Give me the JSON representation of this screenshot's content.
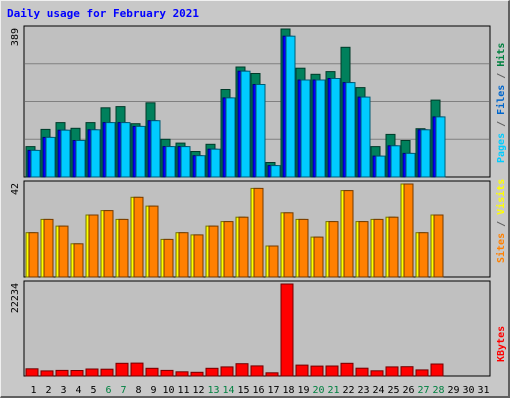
{
  "chart_data": {
    "type": "bar",
    "title": "Daily usage for February 2021",
    "days": [
      "1",
      "2",
      "3",
      "4",
      "5",
      "6",
      "7",
      "8",
      "9",
      "10",
      "11",
      "12",
      "13",
      "14",
      "15",
      "16",
      "17",
      "18",
      "19",
      "20",
      "21",
      "22",
      "23",
      "24",
      "25",
      "26",
      "27",
      "28",
      "29",
      "30",
      "31"
    ],
    "weekend_days": [
      6,
      7,
      13,
      14,
      20,
      21,
      27,
      28
    ],
    "panels": [
      {
        "id": "hits-files-pages",
        "max_label": "389",
        "ylim": [
          0,
          389
        ],
        "side_label": [
          {
            "text": "Pages",
            "color": "#00ccff"
          },
          {
            "text": " / ",
            "color": "#606060"
          },
          {
            "text": "Files",
            "color": "#0066cc"
          },
          {
            "text": " / ",
            "color": "#606060"
          },
          {
            "text": "Hits",
            "color": "#008040"
          }
        ],
        "series": [
          {
            "key": "hits",
            "color": "#00805c",
            "values": [
              80,
              125,
              143,
              128,
              143,
              182,
              185,
              140,
              195,
              99,
              89,
              67,
              86,
              230,
              289,
              272,
              38,
              389,
              286,
              270,
              277,
              341,
              235,
              80,
              112,
              96,
              127,
              202,
              null,
              null,
              null
            ]
          },
          {
            "key": "files",
            "color": "#0000ff",
            "values": [
              70,
              104,
              123,
              96,
              124,
              143,
              143,
              133,
              148,
              80,
              80,
              56,
              73,
              208,
              278,
              243,
              30,
              370,
              255,
              255,
              259,
              248,
              210,
              55,
              82,
              62,
              124,
              158,
              null,
              null,
              null
            ]
          },
          {
            "key": "pages",
            "color": "#00ccff",
            "values": [
              70,
              104,
              123,
              96,
              124,
              143,
              143,
              133,
              148,
              80,
              80,
              56,
              73,
              208,
              278,
              243,
              30,
              370,
              255,
              255,
              259,
              248,
              210,
              55,
              82,
              62,
              124,
              158,
              null,
              null,
              null
            ]
          }
        ]
      },
      {
        "id": "visits-sites",
        "max_label": "42",
        "ylim": [
          0,
          42
        ],
        "side_label": [
          {
            "text": "Sites",
            "color": "#ff8000"
          },
          {
            "text": " / ",
            "color": "#606060"
          },
          {
            "text": "Visits",
            "color": "#ffff00"
          }
        ],
        "series": [
          {
            "key": "visits",
            "color": "#ffff00",
            "values": [
              20,
              26,
              23,
              15,
              28,
              30,
              26,
              36,
              32,
              17,
              20,
              19,
              23,
              25,
              27,
              40,
              14,
              29,
              26,
              18,
              25,
              39,
              25,
              26,
              27,
              42,
              20,
              28,
              null,
              null,
              null
            ]
          },
          {
            "key": "sites",
            "color": "#ff8000",
            "values": [
              20,
              26,
              23,
              15,
              28,
              30,
              26,
              36,
              32,
              17,
              20,
              19,
              23,
              25,
              27,
              40,
              14,
              29,
              26,
              18,
              25,
              39,
              25,
              26,
              27,
              42,
              20,
              28,
              null,
              null,
              null
            ]
          }
        ]
      },
      {
        "id": "kbytes",
        "max_label": "22234",
        "ylim": [
          0,
          22234
        ],
        "side_label": [
          {
            "text": "KBytes",
            "color": "#ff0000"
          }
        ],
        "series": [
          {
            "key": "kbytes",
            "color": "#ff0000",
            "values": [
              1750,
              1240,
              1360,
              1330,
              1690,
              1640,
              3060,
              3110,
              1850,
              1350,
              1020,
              890,
              1850,
              2210,
              2980,
              2440,
              780,
              22234,
              2630,
              2400,
              2420,
              3060,
              1880,
              1260,
              2210,
              2240,
              1480,
              2910,
              null,
              null,
              null
            ]
          }
        ]
      }
    ]
  }
}
